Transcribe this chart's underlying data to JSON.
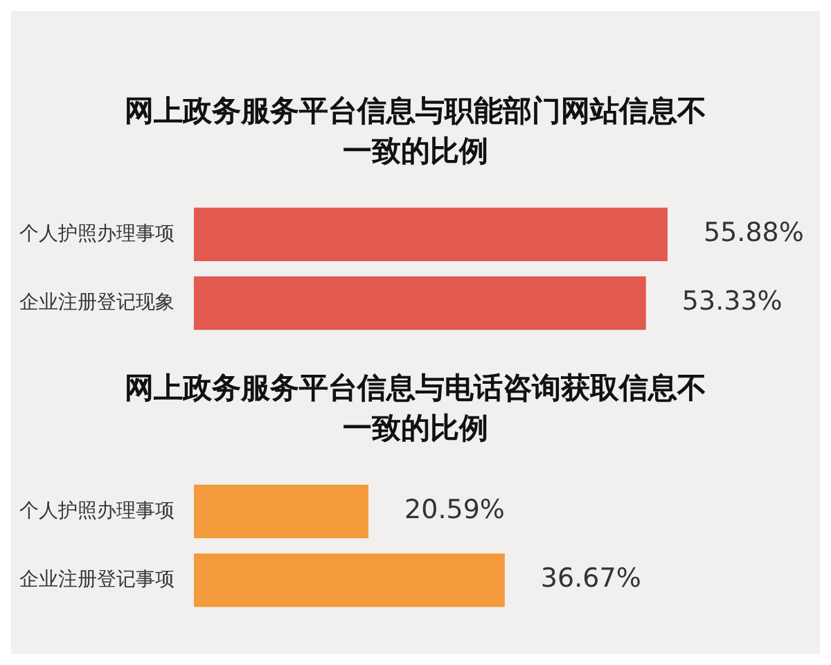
{
  "chart_data": [
    {
      "type": "bar",
      "orientation": "horizontal",
      "title": "网上政务服务平台信息与职能部门网站信息不一致的比例",
      "categories": [
        "个人护照办理事项",
        "企业注册登记现象"
      ],
      "values": [
        55.88,
        53.33
      ],
      "value_labels": [
        "55.88%",
        "53.33%"
      ],
      "colors": [
        "#e35a4f",
        "#e35a4f"
      ],
      "legend": false
    },
    {
      "type": "bar",
      "orientation": "horizontal",
      "title": "网上政务服务平台信息与电话咨询获取信息不一致的比例",
      "categories": [
        "个人护照办理事项",
        "企业注册登记事项"
      ],
      "values": [
        20.59,
        36.67
      ],
      "value_labels": [
        "20.59%",
        "36.67%"
      ],
      "colors": [
        "#f39a3c",
        "#f39a3c"
      ],
      "legend": false
    }
  ]
}
